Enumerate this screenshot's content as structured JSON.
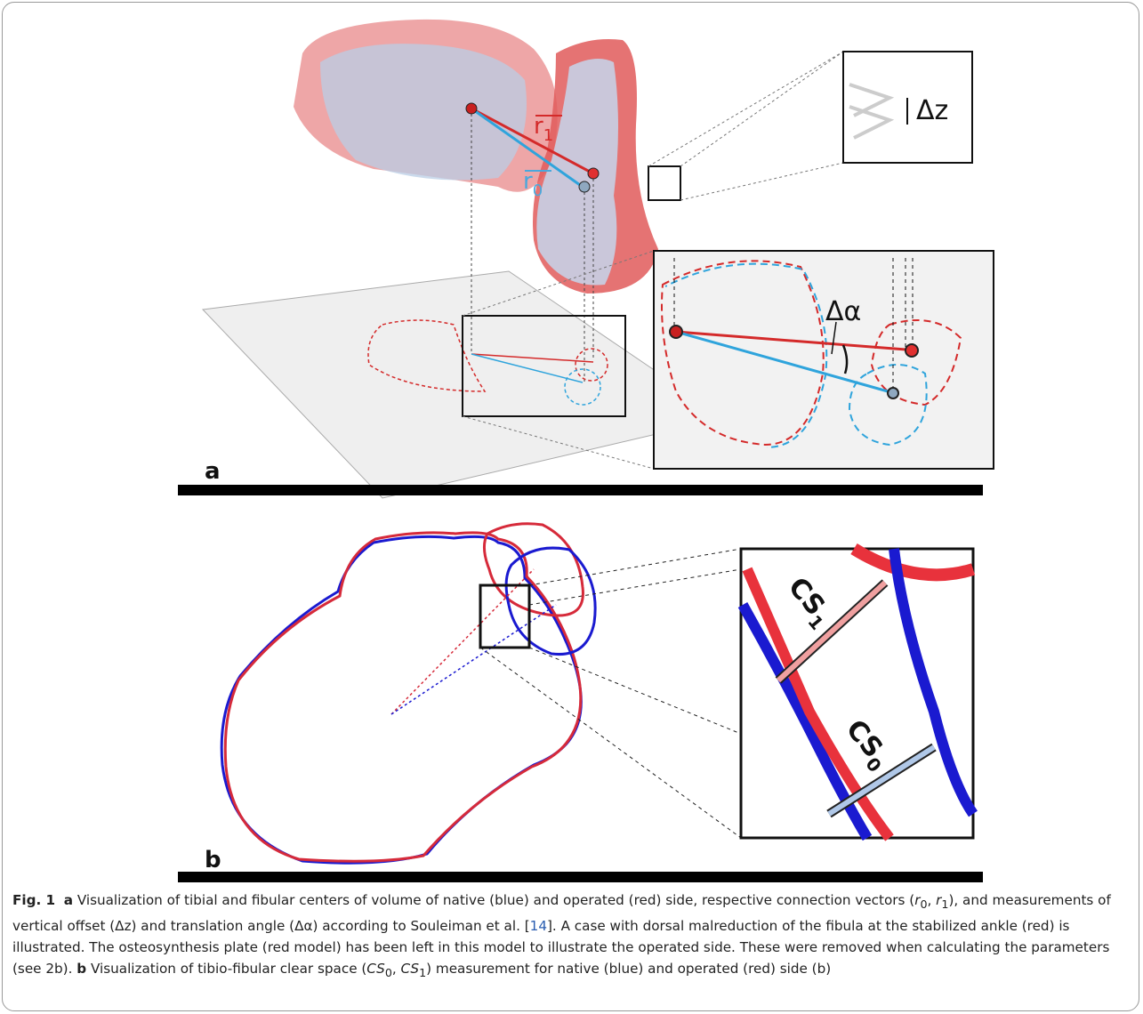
{
  "figure_a": {
    "r1": {
      "base": "r",
      "sub": "1"
    },
    "r0": {
      "base": "r",
      "sub": "0"
    },
    "delta_z": "Δz",
    "delta_alpha": "Δα",
    "panel_label": "a"
  },
  "figure_b": {
    "cs1": {
      "base": "CS",
      "sub": "1"
    },
    "cs0": {
      "base": "CS",
      "sub": "0"
    },
    "panel_label": "b"
  },
  "caption": {
    "runs": [
      "Fig. 1",
      "a",
      "Visualization of tibial and fibular centers of volume of native (blue) and operated (red) side, respective connection vectors (",
      "r",
      "0",
      ", ",
      "r",
      "1",
      "), and measurements of vertical offset (Δz) and translation angle (Δα) according to Souleiman et al. [",
      "14",
      "]. A case with dorsal malreduction of the fibula at the stabilized ankle (red) is illustrated. The osteosynthesis plate (red model) has been left in this model to illustrate the operated side. These were removed when calculating the parameters (see 2b). ",
      "b",
      "Visualization of tibio-fibular clear space (",
      "CS",
      "0",
      ", ",
      "CS",
      "1",
      ") measurement for native (blue) and operated (red) side (b)"
    ]
  }
}
